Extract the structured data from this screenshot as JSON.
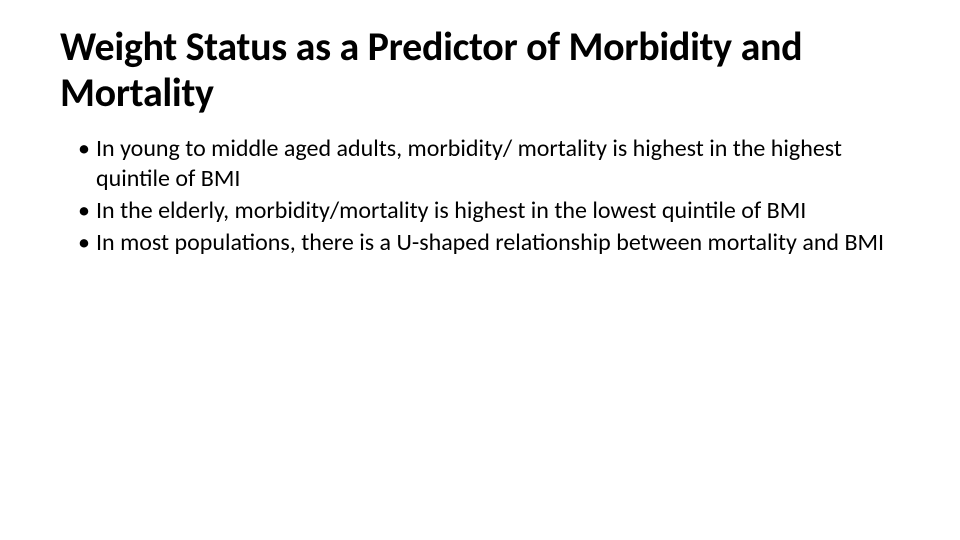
{
  "slide": {
    "title": "Weight Status as a Predictor of Morbidity and Mortality",
    "bullets": [
      "In young to middle aged adults, morbidity/ mortality is highest in the highest quintile of BMI",
      "In the elderly, morbidity/mortality is highest in the lowest quintile of BMI",
      "In most populations, there is a U-shaped relationship between mortality and BMI"
    ],
    "styling": {
      "background_color": "#ffffff",
      "title_fontsize": 40,
      "title_fontweight": 700,
      "title_color": "#000000",
      "body_fontsize": 24,
      "body_color": "#000000",
      "font_family": "Calibri"
    }
  }
}
